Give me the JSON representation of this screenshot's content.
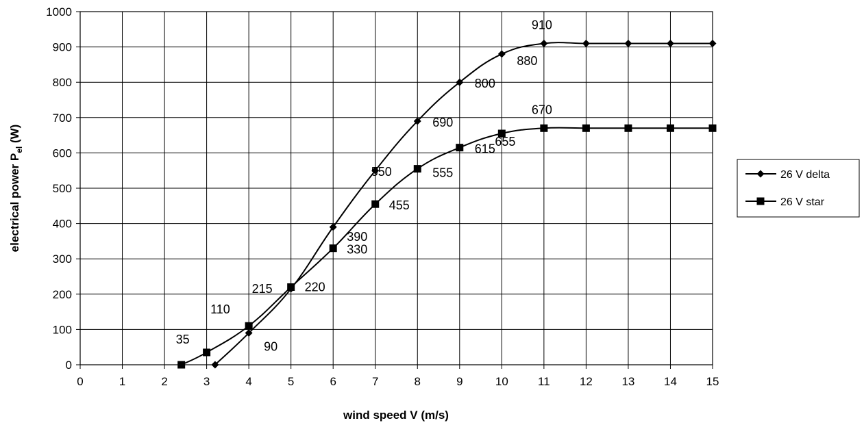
{
  "chart_data": {
    "type": "line",
    "title": "",
    "xlabel": "wind speed V (m/s)",
    "ylabel": {
      "main": "electrical power P",
      "subscript": "el",
      "suffix": " (W)"
    },
    "xlim": [
      0,
      15
    ],
    "ylim": [
      0,
      1000
    ],
    "x_ticks": [
      "0",
      "1",
      "2",
      "3",
      "4",
      "5",
      "6",
      "7",
      "8",
      "9",
      "10",
      "11",
      "12",
      "13",
      "14",
      "15"
    ],
    "y_ticks": [
      "0",
      "100",
      "200",
      "300",
      "400",
      "500",
      "600",
      "700",
      "800",
      "900",
      "1000"
    ],
    "grid": true,
    "legend_position": "right",
    "series": [
      {
        "name": "26 V delta",
        "marker": "diamond",
        "color": "#000000",
        "x": [
          3.2,
          4,
          5,
          6,
          7,
          8,
          9,
          10,
          11,
          12,
          13,
          14,
          15
        ],
        "y": [
          0,
          90,
          215,
          390,
          550,
          690,
          800,
          880,
          910,
          910,
          910,
          910,
          910
        ],
        "labels": [
          {
            "x": 4,
            "y": 90,
            "text": "90"
          },
          {
            "x": 5,
            "y": 215,
            "text": "215"
          },
          {
            "x": 6,
            "y": 390,
            "text": "390"
          },
          {
            "x": 7,
            "y": 550,
            "text": "550"
          },
          {
            "x": 8,
            "y": 690,
            "text": "690"
          },
          {
            "x": 9,
            "y": 800,
            "text": "800"
          },
          {
            "x": 10,
            "y": 880,
            "text": "880"
          },
          {
            "x": 11,
            "y": 910,
            "text": "910"
          }
        ]
      },
      {
        "name": "26 V star",
        "marker": "square",
        "color": "#000000",
        "x": [
          2.4,
          3,
          4,
          5,
          6,
          7,
          8,
          9,
          10,
          11,
          12,
          13,
          14,
          15
        ],
        "y": [
          0,
          35,
          110,
          220,
          330,
          455,
          555,
          615,
          655,
          670,
          670,
          670,
          670,
          670
        ],
        "labels": [
          {
            "x": 3,
            "y": 35,
            "text": "35"
          },
          {
            "x": 4,
            "y": 110,
            "text": "110"
          },
          {
            "x": 5,
            "y": 220,
            "text": "220"
          },
          {
            "x": 6,
            "y": 330,
            "text": "330"
          },
          {
            "x": 7,
            "y": 455,
            "text": "455"
          },
          {
            "x": 8,
            "y": 555,
            "text": "555"
          },
          {
            "x": 9,
            "y": 615,
            "text": "615"
          },
          {
            "x": 10,
            "y": 655,
            "text": "655"
          },
          {
            "x": 11,
            "y": 670,
            "text": "670"
          }
        ]
      }
    ]
  }
}
